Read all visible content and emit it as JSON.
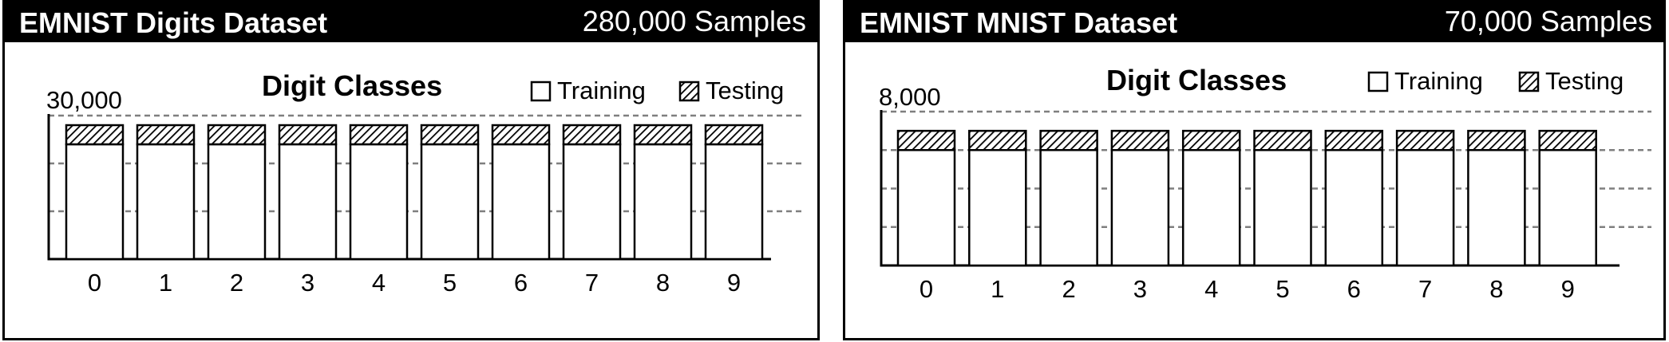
{
  "chart_data": [
    {
      "type": "bar",
      "panel_title": "EMNIST Digits Dataset",
      "sample_count": "280,000 Samples",
      "title": "Digit Classes",
      "categories": [
        "0",
        "1",
        "2",
        "3",
        "4",
        "5",
        "6",
        "7",
        "8",
        "9"
      ],
      "series": [
        {
          "name": "Training",
          "values": [
            24000,
            24000,
            24000,
            24000,
            24000,
            24000,
            24000,
            24000,
            24000,
            24000
          ]
        },
        {
          "name": "Testing",
          "values": [
            4000,
            4000,
            4000,
            4000,
            4000,
            4000,
            4000,
            4000,
            4000,
            4000
          ]
        }
      ],
      "stacked": true,
      "y_max_label": "30,000",
      "ylim": [
        0,
        30000
      ],
      "gridlines": [
        10000,
        20000,
        30000
      ],
      "grid": "dashed horizontal",
      "legend": "top-right",
      "xlabel": "",
      "ylabel": ""
    },
    {
      "type": "bar",
      "panel_title": "EMNIST MNIST Dataset",
      "sample_count": "70,000 Samples",
      "title": "Digit Classes",
      "categories": [
        "0",
        "1",
        "2",
        "3",
        "4",
        "5",
        "6",
        "7",
        "8",
        "9"
      ],
      "series": [
        {
          "name": "Training",
          "values": [
            6000,
            6000,
            6000,
            6000,
            6000,
            6000,
            6000,
            6000,
            6000,
            6000
          ]
        },
        {
          "name": "Testing",
          "values": [
            1000,
            1000,
            1000,
            1000,
            1000,
            1000,
            1000,
            1000,
            1000,
            1000
          ]
        }
      ],
      "stacked": true,
      "y_max_label": "8,000",
      "ylim": [
        0,
        8000
      ],
      "gridlines": [
        2000,
        4000,
        6000,
        8000
      ],
      "grid": "dashed horizontal",
      "legend": "top-right",
      "xlabel": "",
      "ylabel": ""
    }
  ]
}
